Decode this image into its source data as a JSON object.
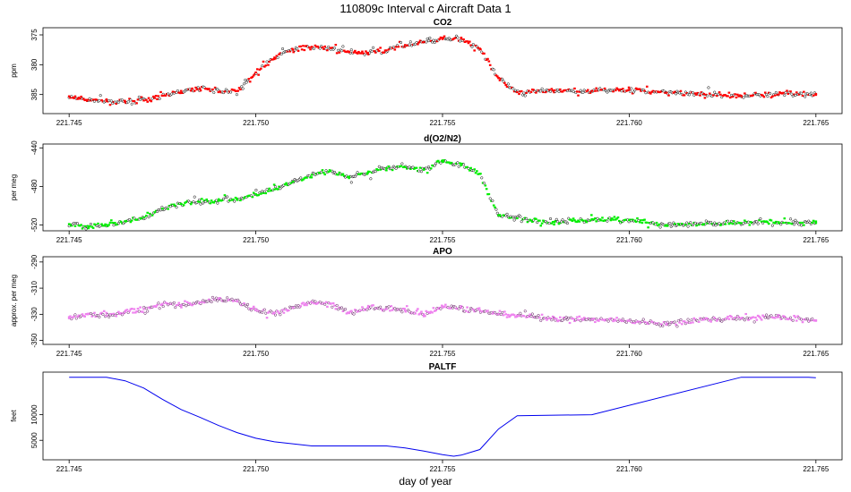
{
  "figure": {
    "title": "110809c   Interval c Aircraft Data 1",
    "xlabel": "day of year"
  },
  "chart_data": [
    {
      "type": "scatter",
      "title": "CO2",
      "xlabel": "",
      "ylabel": "ppm",
      "xlim": [
        221.7443,
        221.7657
      ],
      "ylim": [
        373.8,
        388.2
      ],
      "reverse_y": true,
      "xticks": [
        "221.745",
        "221.750",
        "221.755",
        "221.760",
        "221.765"
      ],
      "yticks": [
        "385",
        "380",
        "375"
      ],
      "ytick_values": [
        385,
        380,
        375
      ],
      "colors": {
        "fill": "#ff0000",
        "stroke": "#000000"
      },
      "series": [
        {
          "x": [
            221.745,
            221.7455,
            221.746,
            221.7465,
            221.747,
            221.7475,
            221.748,
            221.7485,
            221.749,
            221.7495,
            221.75,
            221.7505,
            221.751,
            221.7515,
            221.752,
            221.7525,
            221.753,
            221.7535,
            221.754,
            221.7545,
            221.755,
            221.7555,
            221.756,
            221.7565,
            221.757,
            221.758,
            221.759,
            221.76,
            221.761,
            221.762,
            221.763,
            221.764,
            221.765
          ],
          "y": [
            385.3,
            385.9,
            386.1,
            386.2,
            386.0,
            385.2,
            384.4,
            384.0,
            384.6,
            384.4,
            381.3,
            378.8,
            377.5,
            377.0,
            377.2,
            377.9,
            378.0,
            377.6,
            376.7,
            376.2,
            375.7,
            375.6,
            377.3,
            382.2,
            384.6,
            384.3,
            384.4,
            384.2,
            384.7,
            384.9,
            385.2,
            385.0,
            384.9
          ]
        }
      ]
    },
    {
      "type": "scatter",
      "title": "d(O2/N2)",
      "xlabel": "",
      "ylabel": "per meg",
      "xlim": [
        221.7443,
        221.7657
      ],
      "ylim": [
        -526,
        -436
      ],
      "reverse_y": false,
      "xticks": [
        "221.745",
        "221.750",
        "221.755",
        "221.760",
        "221.765"
      ],
      "yticks": [
        "-440",
        "-480",
        "-520"
      ],
      "ytick_values": [
        -440,
        -480,
        -520
      ],
      "colors": {
        "fill": "#00ee00",
        "stroke": "#000000"
      },
      "series": [
        {
          "x": [
            221.745,
            221.7455,
            221.746,
            221.7465,
            221.747,
            221.7475,
            221.748,
            221.7485,
            221.749,
            221.7495,
            221.75,
            221.7505,
            221.751,
            221.7515,
            221.752,
            221.7525,
            221.753,
            221.7535,
            221.754,
            221.7545,
            221.755,
            221.7555,
            221.756,
            221.7565,
            221.757,
            221.758,
            221.759,
            221.76,
            221.761,
            221.762,
            221.763,
            221.764,
            221.765
          ],
          "y": [
            -519,
            -521,
            -520,
            -516,
            -512,
            -503,
            -498,
            -496,
            -495,
            -494,
            -488,
            -483,
            -475,
            -468,
            -464,
            -470,
            -466,
            -461,
            -460,
            -462,
            -453,
            -458,
            -467,
            -510,
            -513,
            -517,
            -514,
            -515,
            -520,
            -519,
            -518,
            -517,
            -518
          ]
        }
      ]
    },
    {
      "type": "scatter",
      "title": "APO",
      "xlabel": "",
      "ylabel": "approx. per meg",
      "xlim": [
        221.7443,
        221.7657
      ],
      "ylim": [
        -353,
        -286
      ],
      "reverse_y": false,
      "xticks": [
        "221.745",
        "221.750",
        "221.755",
        "221.760",
        "221.765"
      ],
      "yticks": [
        "-290",
        "-310",
        "-330",
        "-350"
      ],
      "ytick_values": [
        -290,
        -310,
        -330,
        -350
      ],
      "colors": {
        "fill": "#ee82ee",
        "stroke": "#5a0a5a"
      },
      "series": [
        {
          "x": [
            221.745,
            221.7455,
            221.746,
            221.7465,
            221.747,
            221.7475,
            221.748,
            221.7485,
            221.749,
            221.7495,
            221.75,
            221.7505,
            221.751,
            221.7515,
            221.752,
            221.7525,
            221.753,
            221.7535,
            221.754,
            221.7545,
            221.755,
            221.7555,
            221.756,
            221.7565,
            221.757,
            221.758,
            221.759,
            221.76,
            221.761,
            221.762,
            221.763,
            221.764,
            221.765
          ],
          "y": [
            -333,
            -330,
            -331,
            -328,
            -326,
            -322,
            -323,
            -321,
            -318,
            -320,
            -327,
            -329,
            -325,
            -321,
            -322,
            -329,
            -325,
            -326,
            -327,
            -330,
            -324,
            -325,
            -327,
            -330,
            -331,
            -333,
            -334,
            -335,
            -337,
            -334,
            -333,
            -332,
            -335
          ]
        }
      ]
    },
    {
      "type": "line",
      "title": "PALTF",
      "xlabel": "",
      "ylabel": "feet",
      "xlim": [
        221.7443,
        221.7657
      ],
      "ylim": [
        1200,
        18300
      ],
      "reverse_y": false,
      "xticks": [
        "221.745",
        "221.750",
        "221.755",
        "221.760",
        "221.765"
      ],
      "yticks": [
        "5000",
        "10000"
      ],
      "ytick_values": [
        5000,
        10000
      ],
      "colors": {
        "line": "#0000ee"
      },
      "series": [
        {
          "x": [
            221.745,
            221.746,
            221.7465,
            221.747,
            221.7475,
            221.748,
            221.7485,
            221.749,
            221.7495,
            221.75,
            221.7505,
            221.7515,
            221.7535,
            221.754,
            221.7545,
            221.755,
            221.7553,
            221.7555,
            221.756,
            221.7565,
            221.757,
            221.759,
            221.763,
            221.7648,
            221.765
          ],
          "y": [
            17300,
            17300,
            16600,
            15200,
            13000,
            11000,
            9500,
            7900,
            6500,
            5400,
            4700,
            3900,
            3900,
            3500,
            2900,
            2200,
            1900,
            2100,
            3200,
            7200,
            9800,
            10000,
            17300,
            17300,
            17200
          ]
        }
      ]
    }
  ]
}
